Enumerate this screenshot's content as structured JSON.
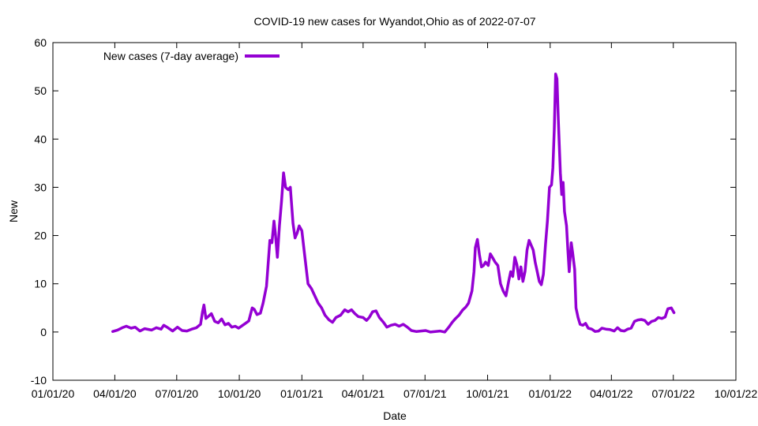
{
  "chart_data": {
    "type": "line",
    "title": "COVID-19 new cases for Wyandot,Ohio as of 2022-07-07",
    "xlabel": "Date",
    "ylabel": "New",
    "xlim": [
      "2020-01-01",
      "2022-10-01"
    ],
    "ylim": [
      -10,
      60
    ],
    "x_ticks": [
      "01/01/20",
      "04/01/20",
      "07/01/20",
      "10/01/20",
      "01/01/21",
      "04/01/21",
      "07/01/21",
      "10/01/21",
      "01/01/22",
      "04/01/22",
      "07/01/22",
      "10/01/22"
    ],
    "x_tick_dates": [
      "2020-01-01",
      "2020-04-01",
      "2020-07-01",
      "2020-10-01",
      "2021-01-01",
      "2021-04-01",
      "2021-07-01",
      "2021-10-01",
      "2022-01-01",
      "2022-04-01",
      "2022-07-01",
      "2022-10-01"
    ],
    "y_ticks": [
      -10,
      0,
      10,
      20,
      30,
      40,
      50,
      60
    ],
    "grid": false,
    "legend_position": "top-left",
    "series": [
      {
        "name": "New cases (7-day average)",
        "color": "#9400d3",
        "points": [
          [
            "2020-03-29",
            0.1
          ],
          [
            "2020-04-05",
            0.4
          ],
          [
            "2020-04-12",
            0.9
          ],
          [
            "2020-04-18",
            1.2
          ],
          [
            "2020-04-25",
            0.8
          ],
          [
            "2020-05-01",
            1.0
          ],
          [
            "2020-05-08",
            0.2
          ],
          [
            "2020-05-15",
            0.7
          ],
          [
            "2020-05-25",
            0.4
          ],
          [
            "2020-06-01",
            0.9
          ],
          [
            "2020-06-08",
            0.6
          ],
          [
            "2020-06-12",
            1.4
          ],
          [
            "2020-06-18",
            0.9
          ],
          [
            "2020-06-25",
            0.2
          ],
          [
            "2020-07-02",
            1.0
          ],
          [
            "2020-07-09",
            0.3
          ],
          [
            "2020-07-16",
            0.2
          ],
          [
            "2020-07-23",
            0.6
          ],
          [
            "2020-07-30",
            0.9
          ],
          [
            "2020-08-05",
            1.6
          ],
          [
            "2020-08-08",
            4.2
          ],
          [
            "2020-08-10",
            5.6
          ],
          [
            "2020-08-13",
            2.8
          ],
          [
            "2020-08-17",
            3.3
          ],
          [
            "2020-08-21",
            3.8
          ],
          [
            "2020-08-26",
            2.2
          ],
          [
            "2020-08-31",
            1.9
          ],
          [
            "2020-09-05",
            2.7
          ],
          [
            "2020-09-10",
            1.5
          ],
          [
            "2020-09-15",
            1.8
          ],
          [
            "2020-09-20",
            1.0
          ],
          [
            "2020-09-25",
            1.2
          ],
          [
            "2020-09-30",
            0.8
          ],
          [
            "2020-10-05",
            1.3
          ],
          [
            "2020-10-10",
            1.8
          ],
          [
            "2020-10-15",
            2.3
          ],
          [
            "2020-10-20",
            5.0
          ],
          [
            "2020-10-23",
            4.7
          ],
          [
            "2020-10-27",
            3.6
          ],
          [
            "2020-11-01",
            3.9
          ],
          [
            "2020-11-05",
            6.0
          ],
          [
            "2020-11-10",
            9.5
          ],
          [
            "2020-11-15",
            19.0
          ],
          [
            "2020-11-18",
            18.5
          ],
          [
            "2020-11-21",
            23.0
          ],
          [
            "2020-11-23",
            20.5
          ],
          [
            "2020-11-26",
            15.5
          ],
          [
            "2020-11-29",
            22.0
          ],
          [
            "2020-12-02",
            27.0
          ],
          [
            "2020-12-05",
            33.0
          ],
          [
            "2020-12-08",
            30.0
          ],
          [
            "2020-12-12",
            29.5
          ],
          [
            "2020-12-15",
            30.0
          ],
          [
            "2020-12-19",
            22.5
          ],
          [
            "2020-12-22",
            19.5
          ],
          [
            "2020-12-25",
            20.5
          ],
          [
            "2020-12-28",
            22.0
          ],
          [
            "2021-01-01",
            21.0
          ],
          [
            "2021-01-05",
            16.0
          ],
          [
            "2021-01-10",
            10.0
          ],
          [
            "2021-01-15",
            9.0
          ],
          [
            "2021-01-20",
            7.5
          ],
          [
            "2021-01-25",
            6.0
          ],
          [
            "2021-01-30",
            5.0
          ],
          [
            "2021-02-04",
            3.5
          ],
          [
            "2021-02-10",
            2.5
          ],
          [
            "2021-02-15",
            2.0
          ],
          [
            "2021-02-20",
            3.0
          ],
          [
            "2021-02-27",
            3.5
          ],
          [
            "2021-03-05",
            4.6
          ],
          [
            "2021-03-10",
            4.2
          ],
          [
            "2021-03-15",
            4.6
          ],
          [
            "2021-03-20",
            3.8
          ],
          [
            "2021-03-25",
            3.2
          ],
          [
            "2021-04-01",
            3.0
          ],
          [
            "2021-04-06",
            2.4
          ],
          [
            "2021-04-10",
            3.0
          ],
          [
            "2021-04-15",
            4.2
          ],
          [
            "2021-04-20",
            4.4
          ],
          [
            "2021-04-25",
            3.0
          ],
          [
            "2021-05-01",
            2.0
          ],
          [
            "2021-05-06",
            1.0
          ],
          [
            "2021-05-12",
            1.4
          ],
          [
            "2021-05-18",
            1.6
          ],
          [
            "2021-05-24",
            1.2
          ],
          [
            "2021-05-30",
            1.6
          ],
          [
            "2021-06-05",
            1.0
          ],
          [
            "2021-06-11",
            0.3
          ],
          [
            "2021-06-18",
            0.1
          ],
          [
            "2021-06-25",
            0.2
          ],
          [
            "2021-07-02",
            0.3
          ],
          [
            "2021-07-09",
            0.0
          ],
          [
            "2021-07-16",
            0.1
          ],
          [
            "2021-07-23",
            0.2
          ],
          [
            "2021-07-30",
            0.0
          ],
          [
            "2021-08-05",
            1.0
          ],
          [
            "2021-08-10",
            2.0
          ],
          [
            "2021-08-15",
            2.8
          ],
          [
            "2021-08-20",
            3.5
          ],
          [
            "2021-08-25",
            4.5
          ],
          [
            "2021-08-30",
            5.2
          ],
          [
            "2021-09-03",
            6.0
          ],
          [
            "2021-09-08",
            8.5
          ],
          [
            "2021-09-11",
            12.5
          ],
          [
            "2021-09-13",
            17.5
          ],
          [
            "2021-09-16",
            19.2
          ],
          [
            "2021-09-19",
            16.0
          ],
          [
            "2021-09-22",
            13.5
          ],
          [
            "2021-09-25",
            13.8
          ],
          [
            "2021-09-28",
            14.5
          ],
          [
            "2021-10-02",
            13.8
          ],
          [
            "2021-10-05",
            16.2
          ],
          [
            "2021-10-08",
            15.5
          ],
          [
            "2021-10-12",
            14.5
          ],
          [
            "2021-10-16",
            13.8
          ],
          [
            "2021-10-20",
            10.0
          ],
          [
            "2021-10-24",
            8.5
          ],
          [
            "2021-10-28",
            7.5
          ],
          [
            "2021-11-01",
            10.5
          ],
          [
            "2021-11-04",
            12.5
          ],
          [
            "2021-11-07",
            11.5
          ],
          [
            "2021-11-10",
            15.5
          ],
          [
            "2021-11-13",
            14.0
          ],
          [
            "2021-11-16",
            11.0
          ],
          [
            "2021-11-19",
            13.5
          ],
          [
            "2021-11-22",
            10.5
          ],
          [
            "2021-11-25",
            12.5
          ],
          [
            "2021-11-28",
            17.0
          ],
          [
            "2021-12-01",
            19.0
          ],
          [
            "2021-12-04",
            18.0
          ],
          [
            "2021-12-07",
            17.0
          ],
          [
            "2021-12-10",
            14.5
          ],
          [
            "2021-12-13",
            12.5
          ],
          [
            "2021-12-16",
            10.5
          ],
          [
            "2021-12-19",
            9.8
          ],
          [
            "2021-12-22",
            12.0
          ],
          [
            "2021-12-25",
            18.0
          ],
          [
            "2021-12-28",
            23.0
          ],
          [
            "2021-12-31",
            30.0
          ],
          [
            "2022-01-03",
            30.5
          ],
          [
            "2022-01-05",
            34.0
          ],
          [
            "2022-01-07",
            42.0
          ],
          [
            "2022-01-09",
            53.5
          ],
          [
            "2022-01-11",
            52.5
          ],
          [
            "2022-01-13",
            44.0
          ],
          [
            "2022-01-16",
            33.0
          ],
          [
            "2022-01-18",
            28.5
          ],
          [
            "2022-01-20",
            31.0
          ],
          [
            "2022-01-22",
            25.0
          ],
          [
            "2022-01-25",
            22.0
          ],
          [
            "2022-01-27",
            17.0
          ],
          [
            "2022-01-29",
            12.5
          ],
          [
            "2022-02-01",
            18.5
          ],
          [
            "2022-02-03",
            16.5
          ],
          [
            "2022-02-06",
            13.0
          ],
          [
            "2022-02-08",
            5.0
          ],
          [
            "2022-02-11",
            3.0
          ],
          [
            "2022-02-14",
            1.6
          ],
          [
            "2022-02-18",
            1.4
          ],
          [
            "2022-02-22",
            1.8
          ],
          [
            "2022-02-26",
            0.8
          ],
          [
            "2022-03-03",
            0.6
          ],
          [
            "2022-03-08",
            0.1
          ],
          [
            "2022-03-13",
            0.2
          ],
          [
            "2022-03-18",
            0.8
          ],
          [
            "2022-03-24",
            0.6
          ],
          [
            "2022-03-30",
            0.5
          ],
          [
            "2022-04-05",
            0.2
          ],
          [
            "2022-04-10",
            0.9
          ],
          [
            "2022-04-15",
            0.3
          ],
          [
            "2022-04-20",
            0.2
          ],
          [
            "2022-04-25",
            0.6
          ],
          [
            "2022-04-30",
            0.8
          ],
          [
            "2022-05-05",
            2.2
          ],
          [
            "2022-05-10",
            2.5
          ],
          [
            "2022-05-15",
            2.6
          ],
          [
            "2022-05-20",
            2.4
          ],
          [
            "2022-05-25",
            1.6
          ],
          [
            "2022-05-30",
            2.2
          ],
          [
            "2022-06-04",
            2.4
          ],
          [
            "2022-06-09",
            3.0
          ],
          [
            "2022-06-14",
            2.8
          ],
          [
            "2022-06-19",
            3.1
          ],
          [
            "2022-06-23",
            4.8
          ],
          [
            "2022-06-28",
            5.0
          ],
          [
            "2022-07-02",
            4.0
          ]
        ]
      }
    ]
  }
}
